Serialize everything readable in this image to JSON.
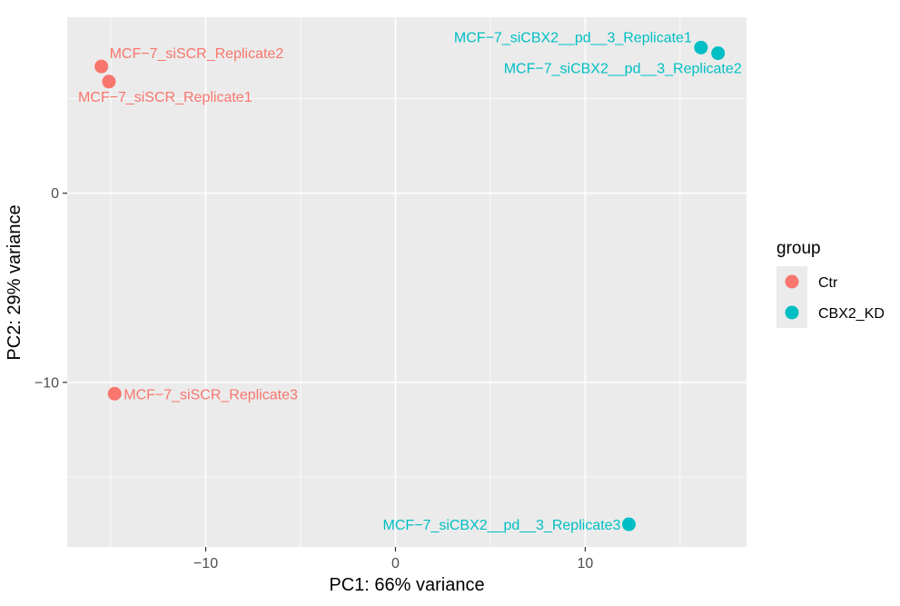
{
  "chart_data": {
    "type": "scatter",
    "xlabel": "PC1: 66% variance",
    "ylabel": "PC2: 29% variance",
    "xlim": [
      -17.3,
      18.5
    ],
    "ylim": [
      -18.7,
      9.3
    ],
    "x_ticks": [
      -10,
      0,
      10
    ],
    "x_tick_labels": [
      "−10",
      "0",
      "10"
    ],
    "y_ticks": [
      -10,
      0
    ],
    "y_tick_labels": [
      "−10",
      "0"
    ],
    "grid": true,
    "legend": {
      "title": "group",
      "position": "right",
      "entries": [
        {
          "label": "Ctr",
          "color": "#F8766D"
        },
        {
          "label": "CBX2_KD",
          "color": "#00BFC4"
        }
      ]
    },
    "series": [
      {
        "name": "Ctr",
        "color": "#F8766D",
        "points": [
          {
            "label": "MCF−7_siSCR_Replicate2",
            "x": -15.5,
            "y": 6.7
          },
          {
            "label": "MCF−7_siSCR_Replicate1",
            "x": -15.1,
            "y": 5.9
          },
          {
            "label": "MCF−7_siSCR_Replicate3",
            "x": -14.8,
            "y": -10.6
          }
        ]
      },
      {
        "name": "CBX2_KD",
        "color": "#00BFC4",
        "points": [
          {
            "label": "MCF−7_siCBX2__pd__3_Replicate1",
            "x": 16.1,
            "y": 7.7
          },
          {
            "label": "MCF−7_siCBX2__pd__3_Replicate2",
            "x": 17.0,
            "y": 7.4
          },
          {
            "label": "MCF−7_siCBX2__pd__3_Replicate3",
            "x": 12.3,
            "y": -17.5
          }
        ]
      }
    ]
  }
}
